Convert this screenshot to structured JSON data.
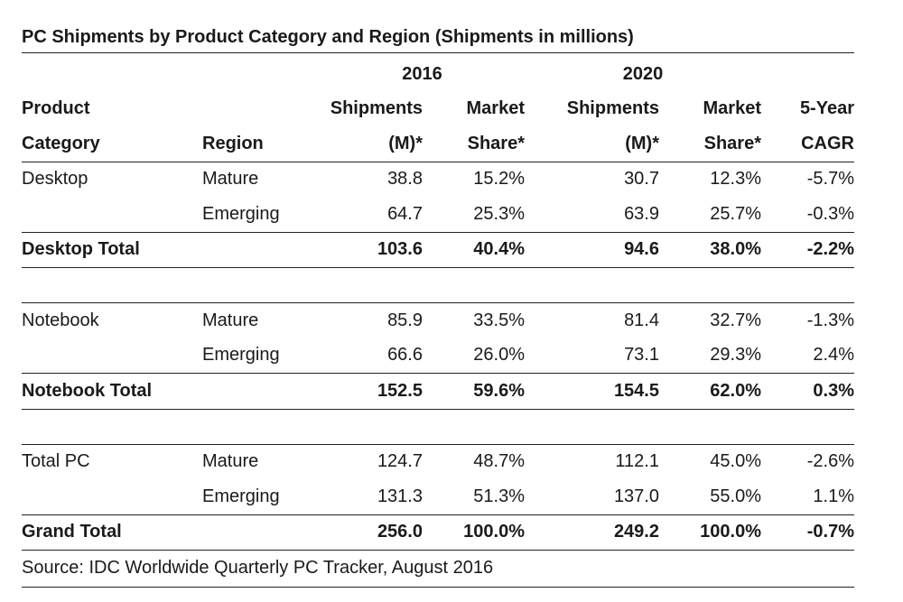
{
  "table": {
    "title": "PC Shipments by Product Category and Region (Shipments in millions)",
    "year_2016": "2016",
    "year_2020": "2020",
    "headers": {
      "product_line1": "Product",
      "product_line2": "Category",
      "region": "Region",
      "ship_line1": "Shipments",
      "ship_line2": "(M)*",
      "market_line1": "Market",
      "market_line2": "Share*",
      "cagr_line1": "5-Year",
      "cagr_line2": "CAGR"
    },
    "rows": [
      {
        "category": "Desktop",
        "region": "Mature",
        "s16": "38.8",
        "m16": "15.2%",
        "s20": "30.7",
        "m20": "12.3%",
        "cagr": "-5.7%"
      },
      {
        "category": "",
        "region": "Emerging",
        "s16": "64.7",
        "m16": "25.3%",
        "s20": "63.9",
        "m20": "25.7%",
        "cagr": "-0.3%"
      },
      {
        "category": "Desktop Total",
        "region": "",
        "s16": "103.6",
        "m16": "40.4%",
        "s20": "94.6",
        "m20": "38.0%",
        "cagr": "-2.2%"
      },
      {
        "category": "Notebook",
        "region": "Mature",
        "s16": "85.9",
        "m16": "33.5%",
        "s20": "81.4",
        "m20": "32.7%",
        "cagr": "-1.3%"
      },
      {
        "category": "",
        "region": "Emerging",
        "s16": "66.6",
        "m16": "26.0%",
        "s20": "73.1",
        "m20": "29.3%",
        "cagr": "2.4%"
      },
      {
        "category": "Notebook Total",
        "region": "",
        "s16": "152.5",
        "m16": "59.6%",
        "s20": "154.5",
        "m20": "62.0%",
        "cagr": "0.3%"
      },
      {
        "category": "Total PC",
        "region": "Mature",
        "s16": "124.7",
        "m16": "48.7%",
        "s20": "112.1",
        "m20": "45.0%",
        "cagr": "-2.6%"
      },
      {
        "category": "",
        "region": "Emerging",
        "s16": "131.3",
        "m16": "51.3%",
        "s20": "137.0",
        "m20": "55.0%",
        "cagr": "1.1%"
      },
      {
        "category": "Grand Total",
        "region": "",
        "s16": "256.0",
        "m16": "100.0%",
        "s20": "249.2",
        "m20": "100.0%",
        "cagr": "-0.7%"
      }
    ],
    "source": "Source: IDC Worldwide Quarterly PC Tracker, August 2016"
  }
}
